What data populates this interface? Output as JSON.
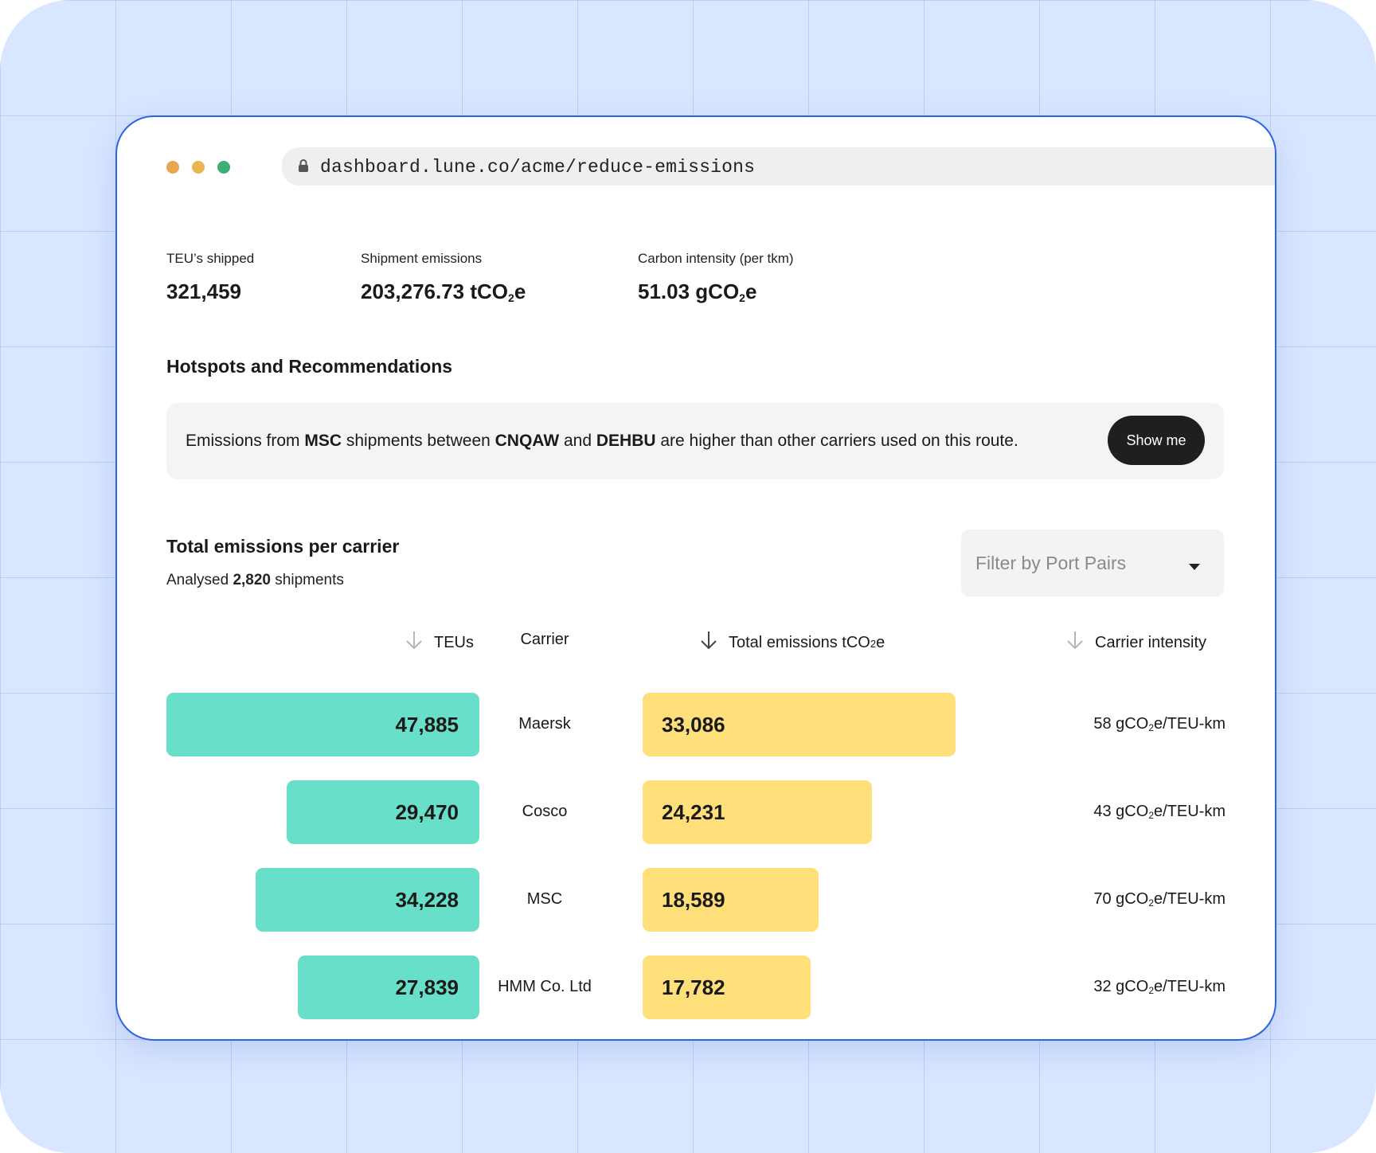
{
  "browser": {
    "dots": [
      {
        "name": "dot-1",
        "color": "#e8a652"
      },
      {
        "name": "dot-2",
        "color": "#e8b552"
      },
      {
        "name": "dot-3",
        "color": "#3fae73"
      }
    ],
    "url": "dashboard.lune.co/acme/reduce-emissions"
  },
  "stats": [
    {
      "label": "TEU’s shipped",
      "value": "321,459",
      "unit_pre": "",
      "unit_sub": "",
      "unit_post": ""
    },
    {
      "label": "Shipment emissions",
      "value": "203,276.73 tCO",
      "unit_sub": "2",
      "unit_post": "e"
    },
    {
      "label": "Carbon intensity (per tkm)",
      "value": "51.03 gCO",
      "unit_sub": "2",
      "unit_post": "e"
    }
  ],
  "hotspots": {
    "title": "Hotspots and Recommendations",
    "text_parts": [
      "Emissions from ",
      "MSC",
      " shipments between ",
      "CNQAW",
      " and ",
      "DEHBU",
      " are higher than other carriers used on this route."
    ],
    "button_label": "Show me"
  },
  "carriers_section": {
    "title": "Total emissions per carrier",
    "analysed_prefix": "Analysed ",
    "analysed_count": "2,820",
    "analysed_suffix": " shipments",
    "filter_placeholder": "Filter by Port Pairs"
  },
  "table": {
    "headers": {
      "teus": "TEUs",
      "carrier": "Carrier",
      "emissions": "Total emissions tCO",
      "emissions_sub": "2",
      "emissions_post": "e",
      "intensity": "Carrier intensity"
    },
    "intensity_unit_pre": " gCO",
    "intensity_unit_sub": "2",
    "intensity_unit_post": "e/TEU-km",
    "rows": [
      {
        "teus": 47885,
        "teus_label": "47,885",
        "carrier": "Maersk",
        "emissions": 33086,
        "emissions_label": "33,086",
        "intensity": "58"
      },
      {
        "teus": 29470,
        "teus_label": "29,470",
        "carrier": "Cosco",
        "emissions": 24231,
        "emissions_label": "24,231",
        "intensity": "43"
      },
      {
        "teus": 34228,
        "teus_label": "34,228",
        "carrier": "MSC",
        "emissions": 18589,
        "emissions_label": "18,589",
        "intensity": "70"
      },
      {
        "teus": 27839,
        "teus_label": "27,839",
        "carrier": "HMM Co. Ltd",
        "emissions": 17782,
        "emissions_label": "17,782",
        "intensity": "32"
      }
    ]
  },
  "colors": {
    "teu_bar": "#68dfc9",
    "emissions_bar": "#ffdf7a",
    "window_border": "#2f63e6",
    "button_bg": "#1f1f1f"
  }
}
